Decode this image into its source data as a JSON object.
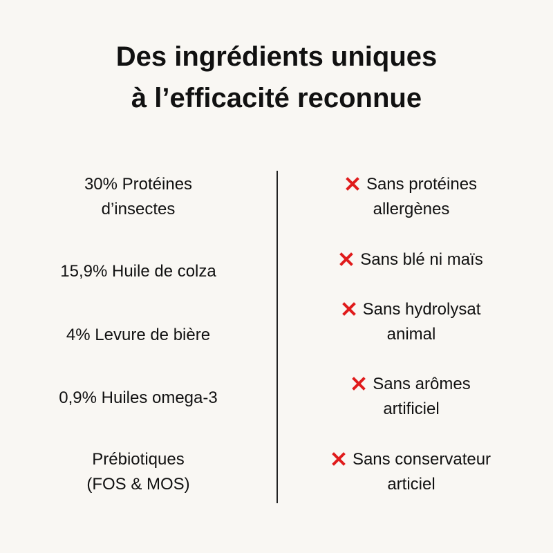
{
  "title": [
    "Des ingrédients uniques",
    "à l’efficacité reconnue"
  ],
  "left": [
    [
      "30% Protéines",
      "d’insectes"
    ],
    [
      "15,9% Huile de colza"
    ],
    [
      "4% Levure de bière"
    ],
    [
      "0,9% Huiles omega-3"
    ],
    [
      "Prébiotiques",
      "(FOS & MOS)"
    ]
  ],
  "right": [
    [
      "Sans protéines",
      "allergènes"
    ],
    [
      "Sans blé ni maïs"
    ],
    [
      "Sans hydrolysat",
      "animal"
    ],
    [
      "Sans arômes",
      "artificiel"
    ],
    [
      "Sans conservateur",
      "articiel"
    ]
  ]
}
